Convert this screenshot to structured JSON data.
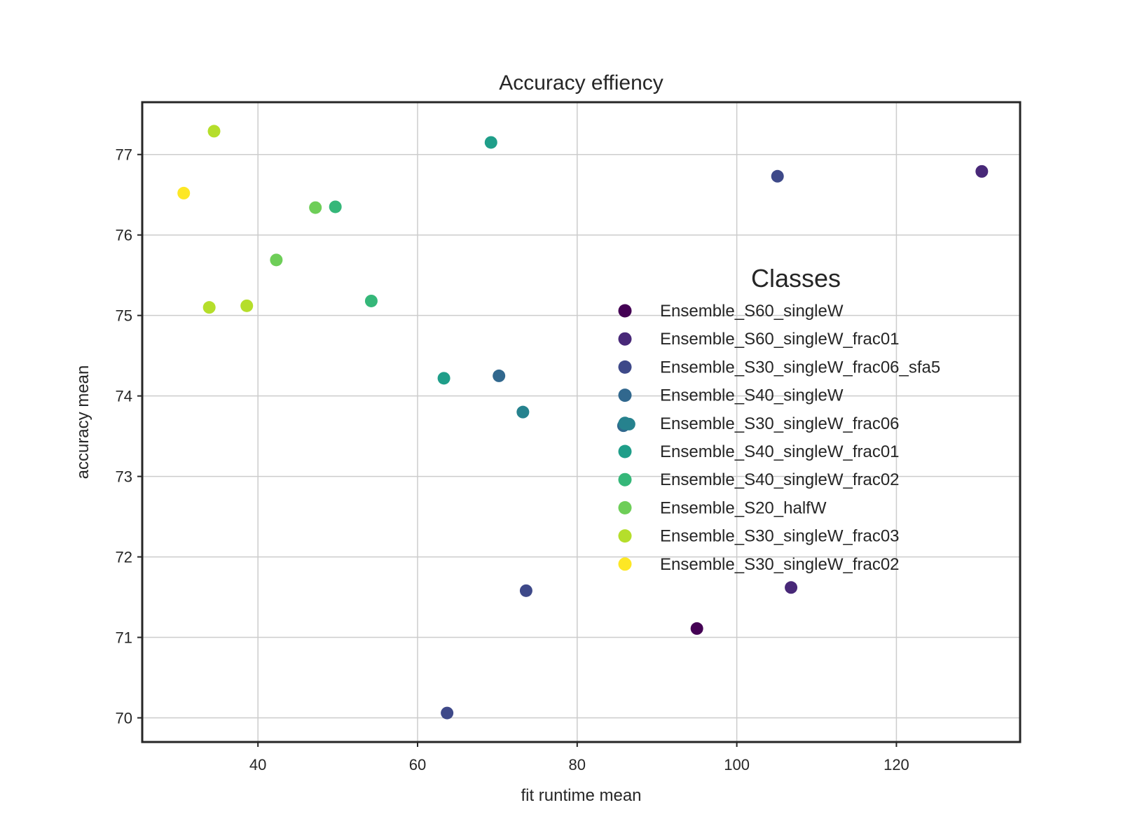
{
  "chart_data": {
    "type": "scatter",
    "title": "Accuracy effiency",
    "xlabel": "fit runtime mean",
    "ylabel": "accuracy mean",
    "xlim": [
      25.5,
      135.5
    ],
    "ylim": [
      69.7,
      77.65
    ],
    "xticks": [
      40,
      60,
      80,
      100,
      120
    ],
    "yticks": [
      70,
      71,
      72,
      73,
      74,
      75,
      76,
      77
    ],
    "grid": true,
    "legend": {
      "title": "Classes",
      "placement": "right"
    },
    "series": [
      {
        "name": "Ensemble_S60_singleW",
        "color": "#440154",
        "points": [
          [
            95.0,
            71.11
          ]
        ]
      },
      {
        "name": "Ensemble_S60_singleW_frac01",
        "color": "#482878",
        "points": [
          [
            130.7,
            76.79
          ],
          [
            106.8,
            71.62
          ]
        ]
      },
      {
        "name": "Ensemble_S30_singleW_frac06_sfa5",
        "color": "#3e4989",
        "points": [
          [
            105.1,
            76.73
          ],
          [
            73.6,
            71.58
          ],
          [
            63.7,
            70.06
          ]
        ]
      },
      {
        "name": "Ensemble_S40_singleW",
        "color": "#31688e",
        "points": [
          [
            70.2,
            74.25
          ],
          [
            85.8,
            73.63
          ]
        ]
      },
      {
        "name": "Ensemble_S30_singleW_frac06",
        "color": "#26828e",
        "points": [
          [
            73.2,
            73.8
          ],
          [
            86.5,
            73.65
          ]
        ]
      },
      {
        "name": "Ensemble_S40_singleW_frac01",
        "color": "#1f9e89",
        "points": [
          [
            69.2,
            77.15
          ],
          [
            63.3,
            74.22
          ]
        ]
      },
      {
        "name": "Ensemble_S40_singleW_frac02",
        "color": "#35b779",
        "points": [
          [
            49.7,
            76.35
          ],
          [
            54.2,
            75.18
          ]
        ]
      },
      {
        "name": "Ensemble_S20_halfW",
        "color": "#6ece58",
        "points": [
          [
            47.2,
            76.34
          ],
          [
            42.3,
            75.69
          ]
        ]
      },
      {
        "name": "Ensemble_S30_singleW_frac03",
        "color": "#b5de2b",
        "points": [
          [
            34.5,
            77.29
          ],
          [
            38.6,
            75.12
          ],
          [
            33.9,
            75.1
          ]
        ]
      },
      {
        "name": "Ensemble_S30_singleW_frac02",
        "color": "#fde725",
        "points": [
          [
            30.7,
            76.52
          ]
        ]
      }
    ]
  }
}
